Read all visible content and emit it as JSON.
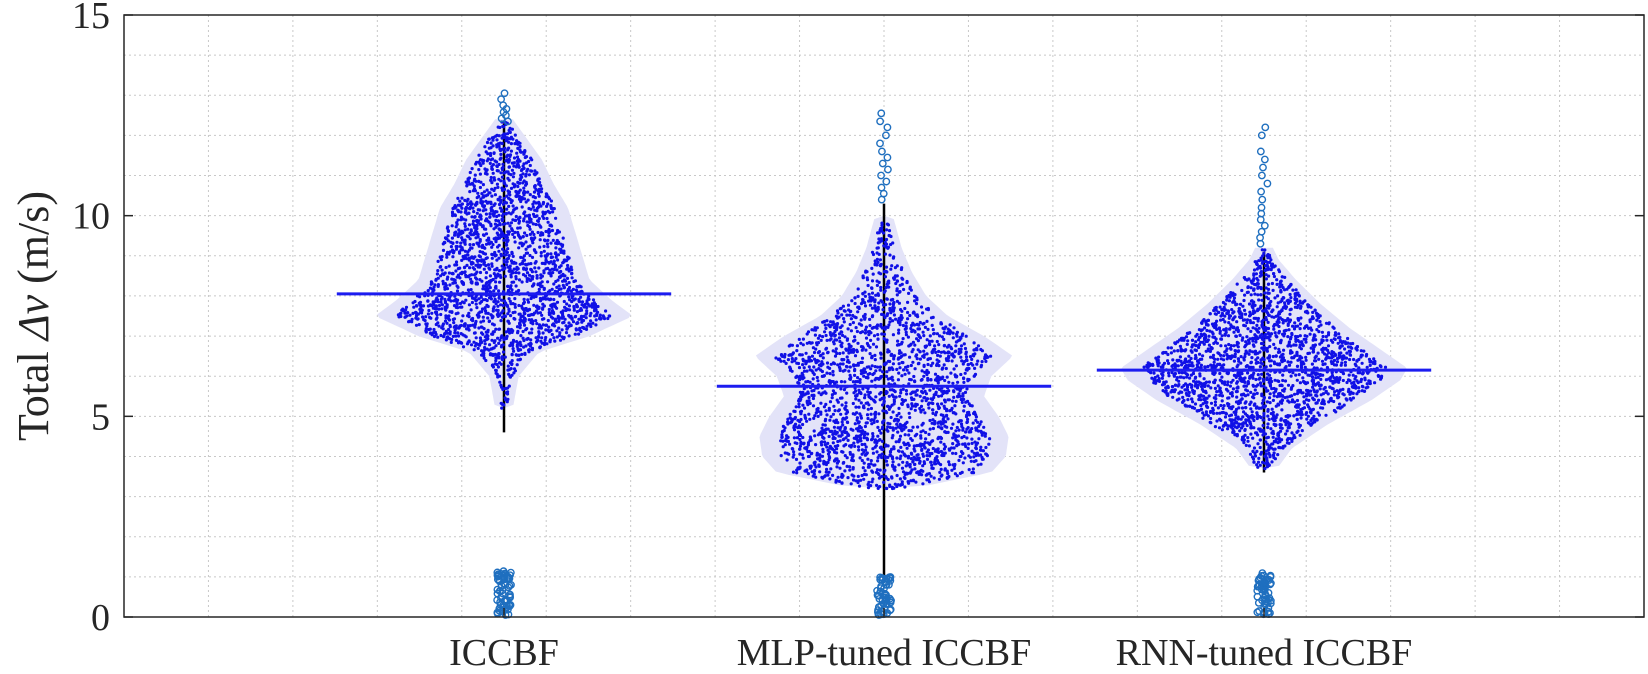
{
  "chart_data": {
    "type": "violin-swarm",
    "title": "",
    "xlabel": "",
    "ylabel": "Total Δv (m/s)",
    "ylabel_prefix": "Total ",
    "ylabel_symbol": "Δv",
    "ylabel_unit": " (m/s)",
    "ylim": [
      0,
      15
    ],
    "yticks": [
      0,
      5,
      10,
      15
    ],
    "ytick_labels": [
      "0",
      "5",
      "10",
      "15"
    ],
    "yminor_step": 1,
    "xminor_divisions": 18,
    "grid": true,
    "colors": {
      "points": "#1010e6",
      "outliers": "#1f6fbf",
      "violin": "#e3e3f8",
      "median": "#1c1cf0",
      "whisker": "#000000",
      "grid": "#c8c8c8",
      "axis": "#262626"
    },
    "categories": [
      "ICCBF",
      "MLP-tuned ICCBF",
      "RNN-tuned ICCBF"
    ],
    "series": [
      {
        "name": "ICCBF",
        "median": 8.05,
        "whisker_low": 4.6,
        "whisker_high": 12.3,
        "violin_profile": [
          [
            5.2,
            0.02
          ],
          [
            6.0,
            0.06
          ],
          [
            6.6,
            0.2
          ],
          [
            7.0,
            0.55
          ],
          [
            7.5,
            0.85
          ],
          [
            7.9,
            0.7
          ],
          [
            8.4,
            0.55
          ],
          [
            9.0,
            0.5
          ],
          [
            9.6,
            0.45
          ],
          [
            10.2,
            0.4
          ],
          [
            10.8,
            0.3
          ],
          [
            11.4,
            0.22
          ],
          [
            12.0,
            0.1
          ],
          [
            12.4,
            0.02
          ]
        ],
        "outliers_high": [
          12.35,
          12.42,
          12.5,
          12.58,
          12.66,
          12.75,
          12.9,
          13.05
        ],
        "outliers_low_range": [
          0.05,
          1.15
        ],
        "outliers_low_count": 60
      },
      {
        "name": "MLP-tuned ICCBF",
        "median": 5.75,
        "whisker_low": 0.9,
        "whisker_high": 10.3,
        "violin_profile": [
          [
            3.2,
            0.15
          ],
          [
            3.6,
            0.7
          ],
          [
            4.0,
            0.8
          ],
          [
            4.5,
            0.82
          ],
          [
            5.0,
            0.75
          ],
          [
            5.5,
            0.65
          ],
          [
            6.0,
            0.7
          ],
          [
            6.5,
            0.85
          ],
          [
            7.0,
            0.65
          ],
          [
            7.5,
            0.4
          ],
          [
            8.0,
            0.25
          ],
          [
            8.6,
            0.15
          ],
          [
            9.2,
            0.08
          ],
          [
            10.0,
            0.02
          ]
        ],
        "outliers_high": [
          10.4,
          10.55,
          10.7,
          10.85,
          11.0,
          11.15,
          11.3,
          11.45,
          11.6,
          11.8,
          12.0,
          12.2,
          12.35,
          12.55
        ],
        "outliers_low_range": [
          0.05,
          1.0
        ],
        "outliers_low_count": 55
      },
      {
        "name": "RNN-tuned ICCBF",
        "median": 6.15,
        "whisker_low": 3.6,
        "whisker_high": 9.1,
        "violin_profile": [
          [
            3.7,
            0.05
          ],
          [
            4.2,
            0.15
          ],
          [
            4.8,
            0.4
          ],
          [
            5.4,
            0.7
          ],
          [
            5.9,
            0.9
          ],
          [
            6.2,
            0.95
          ],
          [
            6.7,
            0.75
          ],
          [
            7.2,
            0.55
          ],
          [
            7.8,
            0.35
          ],
          [
            8.4,
            0.18
          ],
          [
            8.9,
            0.06
          ],
          [
            9.2,
            0.02
          ]
        ],
        "outliers_high": [
          9.3,
          9.45,
          9.6,
          9.75,
          9.9,
          10.05,
          10.2,
          10.4,
          10.6,
          10.8,
          11.0,
          11.2,
          11.4,
          11.6,
          12.0,
          12.2
        ],
        "outliers_low_range": [
          0.05,
          1.1
        ],
        "outliers_low_count": 55
      }
    ]
  }
}
